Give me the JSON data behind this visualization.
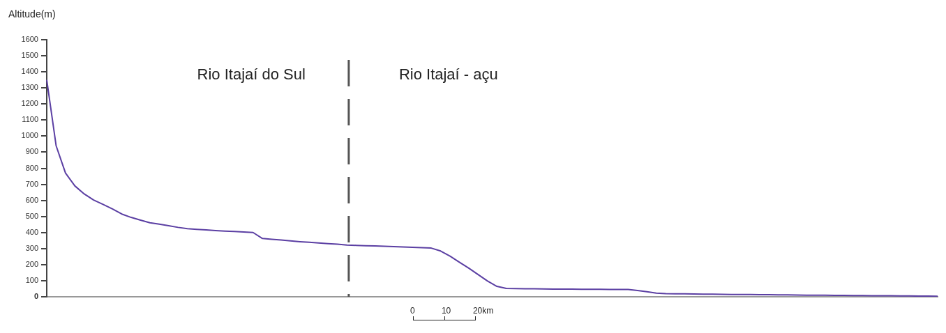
{
  "chart_data": {
    "type": "line",
    "ylabel": "Altitude(m)",
    "categories": [
      null,
      null,
      null,
      null,
      null,
      null,
      null,
      null,
      null,
      null,
      null,
      null,
      null,
      null,
      null,
      null,
      null,
      null,
      null,
      null,
      null,
      null,
      null,
      null,
      null,
      null,
      null,
      null,
      null,
      null,
      null,
      null,
      null,
      null,
      null,
      null,
      null,
      null,
      null,
      null,
      null,
      null,
      null,
      null,
      null,
      null,
      null,
      null,
      null,
      null,
      null,
      null,
      null,
      null,
      null,
      null,
      null,
      null,
      null,
      null,
      null,
      null,
      null,
      null,
      null,
      null,
      null,
      null,
      null,
      null,
      null,
      null,
      null,
      null,
      null,
      null,
      null,
      null,
      null,
      null,
      null,
      null,
      null,
      null,
      null,
      null,
      null,
      null,
      null,
      null,
      null,
      null,
      null,
      null,
      null,
      null
    ],
    "ylim": [
      0,
      1600
    ],
    "yticks": [
      0,
      100,
      200,
      300,
      400,
      500,
      600,
      700,
      800,
      900,
      1000,
      1100,
      1200,
      1300,
      1400,
      1500,
      1600
    ],
    "tick_labels": "y",
    "series": [
      {
        "color": "#5b3fa3",
        "values": [
          1350,
          940,
          770,
          690,
          640,
          602,
          575,
          547,
          515,
          494,
          477,
          461,
          452,
          442,
          432,
          424,
          420,
          416,
          412,
          409,
          406,
          403,
          400,
          363,
          358,
          353,
          348,
          343,
          339,
          335,
          331,
          327,
          322,
          320,
          318,
          316,
          314,
          312,
          310,
          308,
          306,
          303,
          285,
          253,
          215,
          178,
          138,
          98,
          65,
          52,
          51,
          50,
          50,
          49,
          48,
          48,
          48,
          47,
          47,
          47,
          46,
          46,
          46,
          39,
          31,
          23,
          19,
          18,
          18,
          17,
          16,
          16,
          15,
          14,
          14,
          14,
          13,
          13,
          12,
          12,
          11,
          10,
          10,
          10,
          9,
          9,
          8,
          8,
          7,
          7,
          6,
          5,
          5,
          4,
          4,
          3
        ]
      }
    ],
    "annotations": [
      "Rio Itajaí do Sul",
      "Rio Itajaí - açu",
      "0",
      "10",
      "20km"
    ]
  }
}
